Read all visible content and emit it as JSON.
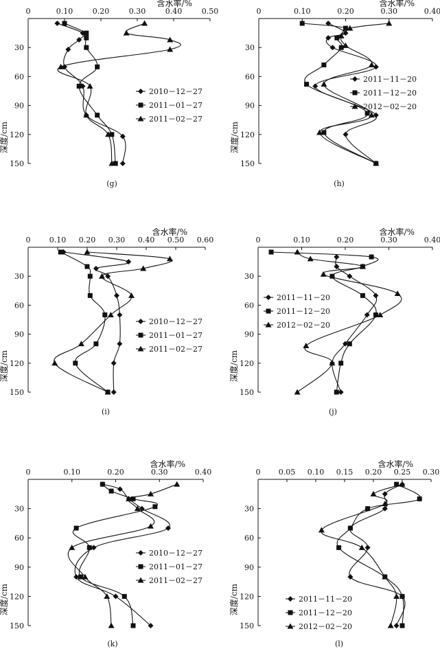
{
  "chart_data": [
    {
      "id": "g",
      "type": "line",
      "panel_label": "(g)",
      "xlabel": "含水率/%",
      "ylabel": "深度/cm",
      "x_axis_position": "top",
      "y_axis_inverted": true,
      "xlim": [
        0,
        0.5
      ],
      "ylim": [
        0,
        150
      ],
      "x_ticks": [
        "0",
        "0.10",
        "0.20",
        "0.30",
        "0.40",
        "0.50"
      ],
      "y_ticks": [
        "30",
        "60",
        "90",
        "120",
        "150"
      ],
      "legend_position": "right-middle",
      "series": [
        {
          "name": "2010－12－27",
          "marker": "diamond",
          "points": [
            [
              0.08,
              5
            ],
            [
              0.15,
              15
            ],
            [
              0.14,
              22
            ],
            [
              0.11,
              32
            ],
            [
              0.1,
              50
            ],
            [
              0.15,
              70
            ],
            [
              0.16,
              100
            ],
            [
              0.26,
              122
            ],
            [
              0.26,
              150
            ]
          ]
        },
        {
          "name": "2011－01－27",
          "marker": "square",
          "points": [
            [
              0.1,
              5
            ],
            [
              0.16,
              15
            ],
            [
              0.16,
              20
            ],
            [
              0.16,
              30
            ],
            [
              0.19,
              50
            ],
            [
              0.14,
              70
            ],
            [
              0.19,
              100
            ],
            [
              0.23,
              120
            ],
            [
              0.24,
              150
            ]
          ]
        },
        {
          "name": "2011－02－27",
          "marker": "triangle",
          "points": [
            [
              0.32,
              5
            ],
            [
              0.27,
              15
            ],
            [
              0.39,
              22
            ],
            [
              0.39,
              32
            ],
            [
              0.09,
              50
            ],
            [
              0.17,
              70
            ],
            [
              0.16,
              100
            ],
            [
              0.22,
              120
            ],
            [
              0.23,
              150
            ]
          ]
        }
      ]
    },
    {
      "id": "h",
      "type": "line",
      "panel_label": "(h)",
      "xlabel": "含水率/%",
      "ylabel": "深度/cm",
      "x_axis_position": "top",
      "y_axis_inverted": true,
      "xlim": [
        0,
        0.4
      ],
      "ylim": [
        0,
        150
      ],
      "x_ticks": [
        "0",
        "0.10",
        "0.20",
        "0.30",
        "0.40"
      ],
      "y_ticks": [
        "30",
        "60",
        "90",
        "120",
        "150"
      ],
      "legend_position": "right-middle",
      "series": [
        {
          "name": "2011－11－20",
          "marker": "diamond",
          "points": [
            [
              0.16,
              5
            ],
            [
              0.2,
              15
            ],
            [
              0.16,
              20
            ],
            [
              0.17,
              30
            ],
            [
              0.27,
              50
            ],
            [
              0.13,
              70
            ],
            [
              0.27,
              100
            ],
            [
              0.2,
              120
            ],
            [
              0.27,
              150
            ]
          ]
        },
        {
          "name": "2011－12－20",
          "marker": "square",
          "points": [
            [
              0.1,
              5
            ],
            [
              0.2,
              10
            ],
            [
              0.18,
              20
            ],
            [
              0.19,
              30
            ],
            [
              0.15,
              48
            ],
            [
              0.11,
              68
            ],
            [
              0.25,
              98
            ],
            [
              0.15,
              118
            ],
            [
              0.27,
              150
            ]
          ]
        },
        {
          "name": "2012－02－20",
          "marker": "triangle",
          "points": [
            [
              0.3,
              5
            ],
            [
              0.21,
              10
            ],
            [
              0.19,
              18
            ],
            [
              0.2,
              28
            ],
            [
              0.26,
              48
            ],
            [
              0.15,
              68
            ],
            [
              0.26,
              100
            ],
            [
              0.14,
              118
            ],
            [
              0.27,
              150
            ]
          ]
        }
      ]
    },
    {
      "id": "i",
      "type": "line",
      "panel_label": "(i)",
      "xlabel": "含水率/%",
      "ylabel": "深度/cm",
      "x_axis_position": "top",
      "y_axis_inverted": true,
      "xlim": [
        0,
        0.6
      ],
      "ylim": [
        0,
        150
      ],
      "x_ticks": [
        "0",
        "0.10",
        "0.20",
        "0.30",
        "0.40",
        "0.50",
        "0.60"
      ],
      "y_ticks": [
        "30",
        "60",
        "90",
        "120",
        "150"
      ],
      "legend_position": "right-middle",
      "series": [
        {
          "name": "2010－12－27",
          "marker": "diamond",
          "points": [
            [
              0.12,
              5
            ],
            [
              0.34,
              15
            ],
            [
              0.23,
              22
            ],
            [
              0.27,
              30
            ],
            [
              0.3,
              50
            ],
            [
              0.31,
              70
            ],
            [
              0.31,
              100
            ],
            [
              0.29,
              120
            ],
            [
              0.29,
              150
            ]
          ]
        },
        {
          "name": "2011－01－27",
          "marker": "square",
          "points": [
            [
              0.11,
              5
            ],
            [
              0.2,
              20
            ],
            [
              0.21,
              30
            ],
            [
              0.21,
              50
            ],
            [
              0.26,
              70
            ],
            [
              0.23,
              100
            ],
            [
              0.16,
              120
            ],
            [
              0.27,
              150
            ]
          ]
        },
        {
          "name": "2011－02－27",
          "marker": "triangle",
          "points": [
            [
              0.2,
              5
            ],
            [
              0.48,
              12
            ],
            [
              0.39,
              22
            ],
            [
              0.25,
              30
            ],
            [
              0.35,
              50
            ],
            [
              0.28,
              70
            ],
            [
              0.18,
              100
            ],
            [
              0.09,
              120
            ],
            [
              0.27,
              150
            ]
          ]
        }
      ]
    },
    {
      "id": "j",
      "type": "line",
      "panel_label": "(j)",
      "xlabel": "含水率/%",
      "ylabel": "深度/cm",
      "x_axis_position": "top",
      "y_axis_inverted": true,
      "xlim": [
        0,
        0.4
      ],
      "ylim": [
        0,
        150
      ],
      "x_ticks": [
        "0",
        "0.10",
        "0.20",
        "0.30",
        "0.40"
      ],
      "y_ticks": [
        "30",
        "60",
        "90",
        "120",
        "150"
      ],
      "legend_position": "left-middle",
      "series": [
        {
          "name": "2011－11－20",
          "marker": "diamond",
          "points": [
            [
              0.18,
              10
            ],
            [
              0.18,
              20
            ],
            [
              0.21,
              30
            ],
            [
              0.27,
              50
            ],
            [
              0.25,
              70
            ],
            [
              0.2,
              100
            ],
            [
              0.17,
              120
            ],
            [
              0.19,
              150
            ]
          ]
        },
        {
          "name": "2011－12－20",
          "marker": "square",
          "points": [
            [
              0.03,
              5
            ],
            [
              0.26,
              10
            ],
            [
              0.24,
              20
            ],
            [
              0.17,
              30
            ],
            [
              0.24,
              50
            ],
            [
              0.27,
              70
            ],
            [
              0.21,
              100
            ],
            [
              0.19,
              120
            ],
            [
              0.18,
              150
            ]
          ]
        },
        {
          "name": "2012－02－20",
          "marker": "triangle",
          "points": [
            [
              0.09,
              5
            ],
            [
              0.12,
              12
            ],
            [
              0.24,
              20
            ],
            [
              0.15,
              28
            ],
            [
              0.32,
              48
            ],
            [
              0.28,
              70
            ],
            [
              0.11,
              102
            ],
            [
              0.17,
              120
            ],
            [
              0.09,
              150
            ]
          ]
        }
      ]
    },
    {
      "id": "k",
      "type": "line",
      "panel_label": "(k)",
      "xlabel": "含水率/%",
      "ylabel": "深度/cm",
      "x_axis_position": "top",
      "y_axis_inverted": true,
      "xlim": [
        0,
        0.4
      ],
      "ylim": [
        0,
        150
      ],
      "x_ticks": [
        "0",
        "0.10",
        "0.20",
        "0.30",
        "0.40"
      ],
      "y_ticks": [
        "30",
        "60",
        "90",
        "120",
        "150"
      ],
      "legend_position": "right-middle",
      "series": [
        {
          "name": "2010－12－27",
          "marker": "diamond",
          "points": [
            [
              0.17,
              5
            ],
            [
              0.21,
              10
            ],
            [
              0.23,
              20
            ],
            [
              0.26,
              30
            ],
            [
              0.32,
              50
            ],
            [
              0.15,
              70
            ],
            [
              0.11,
              100
            ],
            [
              0.2,
              120
            ],
            [
              0.28,
              150
            ]
          ]
        },
        {
          "name": "2011－01－27",
          "marker": "square",
          "points": [
            [
              0.17,
              5
            ],
            [
              0.19,
              12
            ],
            [
              0.24,
              20
            ],
            [
              0.29,
              28
            ],
            [
              0.11,
              50
            ],
            [
              0.14,
              70
            ],
            [
              0.12,
              100
            ],
            [
              0.22,
              120
            ],
            [
              0.24,
              150
            ]
          ]
        },
        {
          "name": "2011－02－27",
          "marker": "triangle",
          "points": [
            [
              0.34,
              5
            ],
            [
              0.28,
              15
            ],
            [
              0.23,
              20
            ],
            [
              0.25,
              30
            ],
            [
              0.28,
              48
            ],
            [
              0.1,
              70
            ],
            [
              0.13,
              100
            ],
            [
              0.18,
              120
            ],
            [
              0.19,
              150
            ]
          ]
        }
      ]
    },
    {
      "id": "l",
      "type": "line",
      "panel_label": "(l)",
      "xlabel": "含水率/%",
      "ylabel": "深度/cm",
      "x_axis_position": "top",
      "y_axis_inverted": true,
      "xlim": [
        0,
        0.3
      ],
      "ylim": [
        0,
        150
      ],
      "x_ticks": [
        "0",
        "0.05",
        "0.10",
        "0.15",
        "0.20",
        "0.25",
        "0.30"
      ],
      "y_ticks": [
        "30",
        "60",
        "90",
        "120",
        "150"
      ],
      "legend_position": "bottom-left",
      "series": [
        {
          "name": "2011－11－20",
          "marker": "diamond",
          "points": [
            [
              0.25,
              5
            ],
            [
              0.22,
              15
            ],
            [
              0.22,
              30
            ],
            [
              0.16,
              50
            ],
            [
              0.19,
              70
            ],
            [
              0.16,
              100
            ],
            [
              0.25,
              120
            ],
            [
              0.24,
              150
            ]
          ]
        },
        {
          "name": "2011－12－20",
          "marker": "square",
          "points": [
            [
              0.24,
              5
            ],
            [
              0.28,
              20
            ],
            [
              0.19,
              30
            ],
            [
              0.16,
              50
            ],
            [
              0.14,
              70
            ],
            [
              0.22,
              100
            ],
            [
              0.25,
              120
            ],
            [
              0.25,
              150
            ]
          ]
        },
        {
          "name": "2012－02－20",
          "marker": "triangle",
          "points": [
            [
              0.25,
              5
            ],
            [
              0.2,
              15
            ],
            [
              0.22,
              25
            ],
            [
              0.11,
              52
            ],
            [
              0.18,
              70
            ],
            [
              0.22,
              100
            ],
            [
              0.24,
              120
            ],
            [
              0.23,
              150
            ]
          ]
        }
      ]
    }
  ]
}
